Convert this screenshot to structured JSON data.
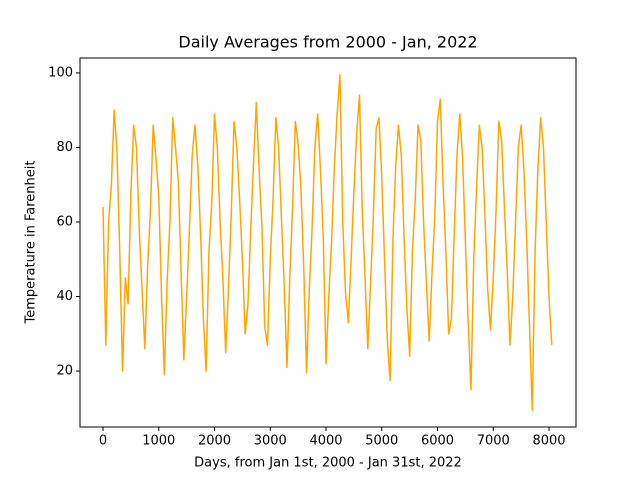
{
  "chart_data": {
    "type": "line",
    "title": "Daily Averages from 2000 - Jan, 2022",
    "xlabel": "Days, from Jan 1st, 2000 - Jan 31st, 2022",
    "ylabel": "Temperature in Farenheit",
    "x": [
      0,
      50,
      100,
      150,
      200,
      250,
      300,
      350,
      400,
      450,
      500,
      550,
      600,
      650,
      700,
      750,
      800,
      850,
      900,
      950,
      1000,
      1050,
      1100,
      1150,
      1200,
      1250,
      1300,
      1350,
      1400,
      1450,
      1500,
      1550,
      1600,
      1650,
      1700,
      1750,
      1800,
      1850,
      1900,
      1950,
      2000,
      2050,
      2100,
      2150,
      2200,
      2250,
      2300,
      2350,
      2400,
      2450,
      2500,
      2550,
      2600,
      2650,
      2700,
      2750,
      2800,
      2850,
      2900,
      2950,
      3000,
      3050,
      3100,
      3150,
      3200,
      3250,
      3300,
      3350,
      3400,
      3450,
      3500,
      3550,
      3600,
      3650,
      3700,
      3750,
      3800,
      3850,
      3900,
      3950,
      4000,
      4050,
      4100,
      4150,
      4200,
      4250,
      4300,
      4350,
      4400,
      4450,
      4500,
      4550,
      4600,
      4650,
      4700,
      4750,
      4800,
      4850,
      4900,
      4950,
      5000,
      5050,
      5100,
      5150,
      5200,
      5250,
      5300,
      5350,
      5400,
      5450,
      5500,
      5550,
      5600,
      5650,
      5700,
      5750,
      5800,
      5850,
      5900,
      5950,
      6000,
      6050,
      6100,
      6150,
      6200,
      6250,
      6300,
      6350,
      6400,
      6450,
      6500,
      6550,
      6600,
      6650,
      6700,
      6750,
      6800,
      6850,
      6900,
      6950,
      7000,
      7050,
      7100,
      7150,
      7200,
      7250,
      7300,
      7350,
      7400,
      7450,
      7500,
      7550,
      7600,
      7650,
      7700,
      7750,
      7800,
      7850,
      7900,
      7950,
      8000,
      8050
    ],
    "series": [
      {
        "name": "Temperature",
        "color": "#ffa500",
        "values": [
          64,
          27,
          60,
          70,
          90,
          79,
          52,
          20,
          45,
          38,
          68,
          86,
          80,
          58,
          42,
          26,
          48,
          63,
          86,
          77,
          67,
          40,
          19,
          44,
          60,
          88,
          80,
          71,
          47,
          23,
          40,
          58,
          78,
          86,
          75,
          57,
          34,
          20,
          52,
          65,
          89,
          80,
          60,
          45,
          25,
          42,
          62,
          87,
          80,
          66,
          50,
          30,
          38,
          58,
          76,
          92,
          74,
          59,
          32,
          27,
          50,
          66,
          88,
          80,
          61,
          43,
          21,
          45,
          64,
          87,
          81,
          69,
          48,
          19.5,
          42,
          58,
          80,
          89,
          74,
          56,
          22,
          40,
          55,
          75,
          89,
          99.5,
          60,
          41,
          33,
          50,
          68,
          84,
          94,
          63,
          45,
          26,
          44,
          62,
          85,
          88,
          72,
          50,
          28,
          17.5,
          55,
          75,
          86,
          78,
          56,
          37,
          24,
          52,
          66,
          86,
          82,
          60,
          44,
          28,
          46,
          61,
          87,
          93,
          70,
          52,
          30,
          34,
          57,
          78,
          89,
          77,
          55,
          33,
          15,
          50,
          69,
          86,
          80,
          62,
          42,
          31,
          45,
          63,
          87,
          82,
          64,
          47,
          27,
          40,
          60,
          80,
          86,
          74,
          55,
          32,
          9.5,
          52,
          74,
          88,
          80,
          60,
          40,
          27
        ]
      }
    ],
    "xlim": [
      -413,
      8484
    ],
    "xticks": [
      0,
      1000,
      2000,
      3000,
      4000,
      5000,
      6000,
      7000,
      8000
    ],
    "ylim": [
      5,
      104
    ],
    "yticks": [
      20,
      40,
      60,
      80,
      100
    ]
  }
}
